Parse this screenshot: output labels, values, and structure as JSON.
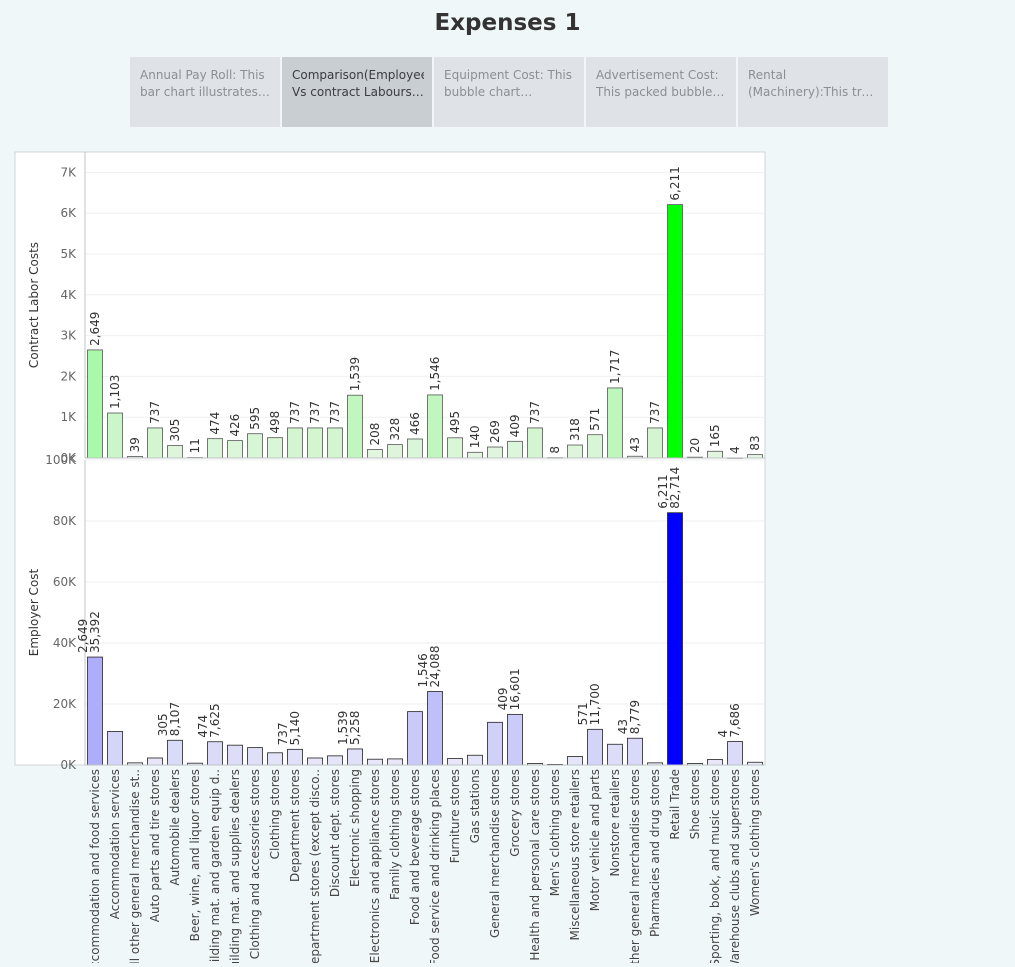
{
  "page": {
    "title": "Expenses 1"
  },
  "tabs": [
    {
      "label": "Annual Pay Roll: This bar chart illustrates the",
      "active": false
    },
    {
      "label": "Comparison(Employee Vs contract Labours): ..",
      "active": true
    },
    {
      "label": "Equipment Cost: This bubble chart visualizes",
      "active": false
    },
    {
      "label": "Advertisement Cost: This packed bubble chart",
      "active": false
    },
    {
      "label": "Rental (Machinery):This tree map",
      "active": false
    }
  ],
  "chart_data": {
    "type": "bar",
    "categories": [
      "Accommodation and food services",
      "Accommodation services",
      "All other general merchandise st..",
      "Auto parts and tire stores",
      "Automobile dealers",
      "Beer, wine, and liquor stores",
      "Building mat. and garden equip d..",
      "Building mat. and supplies dealers",
      "Clothing and accessories stores",
      "Clothing stores",
      "Department stores",
      "Department stores (except disco..",
      "Discount dept. stores",
      "Electronic shopping",
      "Electronics and appliance stores",
      "Family clothing stores",
      "Food and beverage stores",
      "Food service and drinking places",
      "Furniture stores",
      "Gas stations",
      "General merchandise stores",
      "Grocery stores",
      "Health and personal care stores",
      "Men's clothing stores",
      "Miscellaneous store retailers",
      "Motor vehicle and parts",
      "Nonstore retailers",
      "Other general merchandise stores",
      "Pharmacies and drug stores",
      "Retail Trade",
      "Shoe stores",
      "Sporting, book, and  music stores",
      "Warehouse clubs and superstores",
      "Women's clothing stores"
    ],
    "series": [
      {
        "name": "Contract Labor Costs",
        "values": [
          2649,
          1103,
          39,
          737,
          305,
          11,
          474,
          426,
          595,
          498,
          737,
          737,
          737,
          1539,
          208,
          328,
          466,
          1546,
          495,
          140,
          269,
          409,
          737,
          8,
          318,
          571,
          1717,
          43,
          737,
          6211,
          20,
          165,
          4,
          83
        ],
        "labels": [
          "2,649",
          "1,103",
          "39",
          "737",
          "305",
          "11",
          "474",
          "426",
          "595",
          "498",
          "737",
          "737",
          "737",
          "1,539",
          "208",
          "328",
          "466",
          "1,546",
          "495",
          "140",
          "269",
          "409",
          "737",
          "8",
          "318",
          "571",
          "1,717",
          "43",
          "737",
          "6,211",
          "20",
          "165",
          "4",
          "83"
        ],
        "ylabel": "Contract Labor Costs",
        "ylim": [
          0,
          7500
        ],
        "ticks": [
          0,
          1000,
          2000,
          3000,
          4000,
          5000,
          6000,
          7000
        ],
        "tick_labels": [
          "0K",
          "1K",
          "2K",
          "3K",
          "4K",
          "5K",
          "6K",
          "7K"
        ]
      },
      {
        "name": "Employer Cost",
        "values": [
          35392,
          11000,
          700,
          2300,
          8107,
          600,
          7625,
          6500,
          5700,
          4000,
          5140,
          2300,
          3000,
          5258,
          1900,
          2000,
          17500,
          24088,
          2100,
          3200,
          14000,
          16601,
          500,
          200,
          2800,
          11700,
          6800,
          8779,
          700,
          82714,
          500,
          1800,
          7686,
          900
        ],
        "labels": [
          "35,392",
          "",
          "",
          "",
          "8,107",
          "",
          "7,625",
          "",
          "",
          "",
          "5,140",
          "",
          "",
          "5,258",
          "",
          "",
          "",
          "24,088",
          "",
          "",
          "",
          "16,601",
          "",
          "",
          "",
          "11,700",
          "",
          "8,779",
          "",
          "82,714",
          "",
          "",
          "7,686",
          ""
        ],
        "secondary_labels": [
          "2,649",
          "",
          "",
          "",
          "305",
          "",
          "474",
          "",
          "",
          "",
          "737",
          "",
          "",
          "1,539",
          "",
          "",
          "",
          "1,546",
          "",
          "",
          "",
          "409",
          "",
          "",
          "",
          "571",
          "",
          "43",
          "",
          "6,211",
          "",
          "",
          "4",
          ""
        ],
        "ylabel": "Employer Cost",
        "ylim": [
          0,
          100000
        ],
        "ticks": [
          0,
          20000,
          40000,
          60000,
          80000,
          100000
        ],
        "tick_labels": [
          "0K",
          "20K",
          "40K",
          "60K",
          "80K",
          "100K"
        ]
      }
    ],
    "colors": {
      "top_low": "#e8f5e6",
      "top_high": "#00ff00",
      "top_stroke": "#555555",
      "bottom_low": "#ececf8",
      "bottom_high": "#0000ff",
      "bottom_stroke": "#222222"
    },
    "grid": true,
    "legend": "none"
  }
}
